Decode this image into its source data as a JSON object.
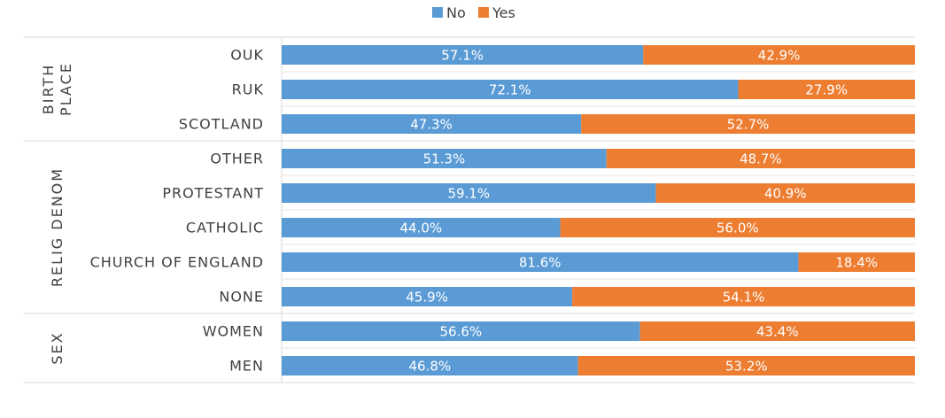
{
  "chart_data": {
    "type": "bar",
    "orientation": "horizontal",
    "stacked": "percent",
    "legend": {
      "placement": "top-center"
    },
    "series": [
      {
        "name": "No",
        "color": "#5b9bd5"
      },
      {
        "name": "Yes",
        "color": "#ed7d31"
      }
    ],
    "groups": [
      {
        "label": "BIRTH PLACE",
        "rows": [
          {
            "category": "OUK",
            "values": [
              57.1,
              42.9
            ],
            "labels": [
              "57.1%",
              "42.9%"
            ]
          },
          {
            "category": "RUK",
            "values": [
              72.1,
              27.9
            ],
            "labels": [
              "72.1%",
              "27.9%"
            ]
          },
          {
            "category": "SCOTLAND",
            "values": [
              47.3,
              52.7
            ],
            "labels": [
              "47.3%",
              "52.7%"
            ]
          }
        ]
      },
      {
        "label": "RELIG DENOM",
        "rows": [
          {
            "category": "OTHER",
            "values": [
              51.3,
              48.7
            ],
            "labels": [
              "51.3%",
              "48.7%"
            ]
          },
          {
            "category": "PROTESTANT",
            "values": [
              59.1,
              40.9
            ],
            "labels": [
              "59.1%",
              "40.9%"
            ]
          },
          {
            "category": "CATHOLIC",
            "values": [
              44.0,
              56.0
            ],
            "labels": [
              "44.0%",
              "56.0%"
            ]
          },
          {
            "category": "CHURCH OF ENGLAND",
            "values": [
              81.6,
              18.4
            ],
            "labels": [
              "81.6%",
              "18.4%"
            ]
          },
          {
            "category": "NONE",
            "values": [
              45.9,
              54.1
            ],
            "labels": [
              "45.9%",
              "54.1%"
            ]
          }
        ]
      },
      {
        "label": "SEX",
        "rows": [
          {
            "category": "WOMEN",
            "values": [
              56.6,
              43.4
            ],
            "labels": [
              "56.6%",
              "43.4%"
            ]
          },
          {
            "category": "MEN",
            "values": [
              46.8,
              53.2
            ],
            "labels": [
              "46.8%",
              "53.2%"
            ]
          }
        ]
      }
    ]
  }
}
